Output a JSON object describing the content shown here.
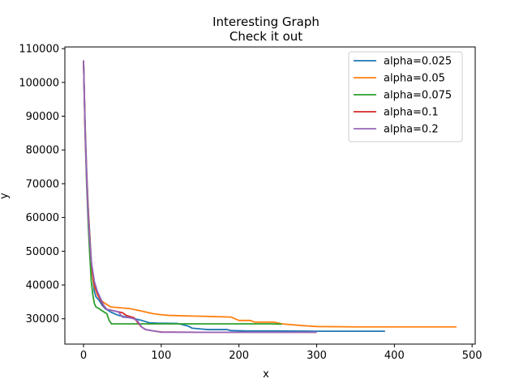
{
  "chart_data": {
    "type": "line",
    "title": "Interesting Graph",
    "subtitle": "Check it out",
    "xlabel": "x",
    "ylabel": "y",
    "xlim": [
      -24,
      504
    ],
    "ylim": [
      22500,
      110500
    ],
    "xticks": [
      0,
      100,
      200,
      300,
      400,
      500
    ],
    "yticks": [
      30000,
      40000,
      50000,
      60000,
      70000,
      80000,
      90000,
      100000,
      110000
    ],
    "legend_position": "top-right",
    "grid": false,
    "series": [
      {
        "name": "alpha=0.025",
        "color": "#1f77b4",
        "points": [
          [
            0,
            106500
          ],
          [
            2,
            88000
          ],
          [
            4,
            74000
          ],
          [
            6,
            63000
          ],
          [
            8,
            55000
          ],
          [
            10,
            47000
          ],
          [
            12,
            42000
          ],
          [
            14,
            38000
          ],
          [
            16,
            36500
          ],
          [
            20,
            35500
          ],
          [
            24,
            34000
          ],
          [
            28,
            33000
          ],
          [
            35,
            32000
          ],
          [
            45,
            31000
          ],
          [
            60,
            30300
          ],
          [
            75,
            29500
          ],
          [
            85,
            28800
          ],
          [
            95,
            28700
          ],
          [
            120,
            28600
          ],
          [
            125,
            28400
          ],
          [
            135,
            27800
          ],
          [
            140,
            27200
          ],
          [
            150,
            27000
          ],
          [
            160,
            26800
          ],
          [
            185,
            26800
          ],
          [
            190,
            26500
          ],
          [
            210,
            26400
          ],
          [
            250,
            26400
          ],
          [
            300,
            26300
          ],
          [
            350,
            26300
          ],
          [
            388,
            26300
          ]
        ]
      },
      {
        "name": "alpha=0.05",
        "color": "#ff7f0e",
        "points": [
          [
            0,
            106500
          ],
          [
            2,
            87000
          ],
          [
            4,
            73000
          ],
          [
            6,
            62000
          ],
          [
            8,
            54000
          ],
          [
            10,
            46500
          ],
          [
            12,
            42000
          ],
          [
            14,
            39500
          ],
          [
            18,
            37000
          ],
          [
            22,
            35500
          ],
          [
            28,
            34500
          ],
          [
            35,
            33500
          ],
          [
            50,
            33200
          ],
          [
            60,
            33000
          ],
          [
            70,
            32500
          ],
          [
            80,
            32000
          ],
          [
            90,
            31500
          ],
          [
            100,
            31200
          ],
          [
            110,
            31000
          ],
          [
            140,
            30800
          ],
          [
            160,
            30700
          ],
          [
            190,
            30500
          ],
          [
            200,
            29500
          ],
          [
            215,
            29500
          ],
          [
            220,
            29000
          ],
          [
            245,
            29000
          ],
          [
            255,
            28500
          ],
          [
            280,
            28000
          ],
          [
            300,
            27700
          ],
          [
            350,
            27600
          ],
          [
            400,
            27600
          ],
          [
            450,
            27600
          ],
          [
            480,
            27600
          ]
        ]
      },
      {
        "name": "alpha=0.075",
        "color": "#2ca02c",
        "points": [
          [
            0,
            106500
          ],
          [
            2,
            85000
          ],
          [
            4,
            70000
          ],
          [
            6,
            58000
          ],
          [
            8,
            49000
          ],
          [
            10,
            41000
          ],
          [
            12,
            37000
          ],
          [
            14,
            34500
          ],
          [
            16,
            33500
          ],
          [
            20,
            33000
          ],
          [
            25,
            32200
          ],
          [
            30,
            31500
          ],
          [
            33,
            29500
          ],
          [
            36,
            28500
          ],
          [
            50,
            28500
          ],
          [
            100,
            28500
          ],
          [
            150,
            28500
          ],
          [
            200,
            28500
          ],
          [
            240,
            28500
          ],
          [
            255,
            28400
          ]
        ]
      },
      {
        "name": "alpha=0.1",
        "color": "#d62728",
        "points": [
          [
            0,
            106500
          ],
          [
            2,
            86000
          ],
          [
            4,
            72000
          ],
          [
            6,
            61000
          ],
          [
            8,
            53000
          ],
          [
            10,
            47000
          ],
          [
            12,
            43000
          ],
          [
            14,
            40000
          ],
          [
            18,
            37500
          ],
          [
            22,
            35500
          ],
          [
            26,
            33800
          ],
          [
            30,
            32800
          ],
          [
            40,
            32300
          ],
          [
            50,
            31800
          ],
          [
            55,
            31000
          ],
          [
            65,
            30300
          ],
          [
            70,
            28800
          ],
          [
            75,
            27500
          ],
          [
            80,
            26800
          ],
          [
            90,
            26400
          ],
          [
            100,
            26100
          ],
          [
            150,
            26000
          ],
          [
            200,
            26000
          ],
          [
            250,
            26000
          ],
          [
            300,
            26000
          ]
        ]
      },
      {
        "name": "alpha=0.2",
        "color": "#9467bd",
        "points": [
          [
            0,
            106500
          ],
          [
            2,
            86000
          ],
          [
            4,
            72000
          ],
          [
            6,
            60000
          ],
          [
            8,
            53000
          ],
          [
            10,
            47000
          ],
          [
            12,
            44000
          ],
          [
            14,
            41000
          ],
          [
            18,
            38000
          ],
          [
            22,
            36000
          ],
          [
            26,
            34000
          ],
          [
            30,
            32800
          ],
          [
            40,
            32300
          ],
          [
            45,
            32000
          ],
          [
            50,
            30500
          ],
          [
            60,
            30300
          ],
          [
            65,
            30000
          ],
          [
            70,
            29200
          ],
          [
            75,
            27500
          ],
          [
            80,
            26800
          ],
          [
            90,
            26400
          ],
          [
            100,
            26000
          ],
          [
            150,
            26000
          ],
          [
            200,
            26000
          ],
          [
            250,
            26000
          ],
          [
            300,
            26000
          ]
        ]
      }
    ]
  }
}
